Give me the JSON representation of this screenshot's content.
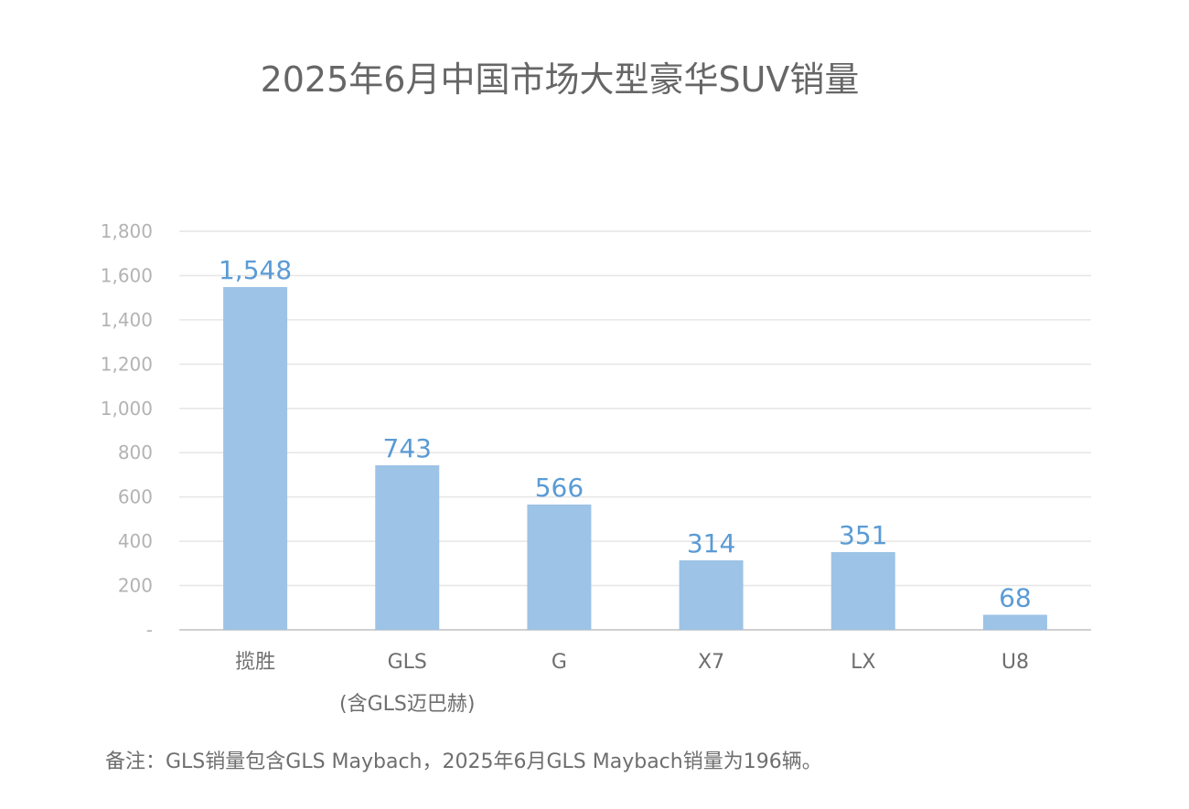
{
  "chart_data": {
    "type": "bar",
    "title": "2025年6月中国市场大型豪华SUV销量",
    "categories": [
      {
        "label": "揽胜",
        "sublabel": ""
      },
      {
        "label": "GLS",
        "sublabel": "(含GLS迈巴赫)"
      },
      {
        "label": "G",
        "sublabel": ""
      },
      {
        "label": "X7",
        "sublabel": ""
      },
      {
        "label": "LX",
        "sublabel": ""
      },
      {
        "label": "U8",
        "sublabel": ""
      }
    ],
    "values": [
      1548,
      743,
      566,
      314,
      351,
      68
    ],
    "data_labels": [
      "1,548",
      "743",
      "566",
      "314",
      "351",
      "68"
    ],
    "ylim": [
      0,
      1800
    ],
    "y_ticks": [
      {
        "value": 0,
        "label": "-"
      },
      {
        "value": 200,
        "label": "200"
      },
      {
        "value": 400,
        "label": "400"
      },
      {
        "value": 600,
        "label": "600"
      },
      {
        "value": 800,
        "label": "800"
      },
      {
        "value": 1000,
        "label": "1,000"
      },
      {
        "value": 1200,
        "label": "1,200"
      },
      {
        "value": 1400,
        "label": "1,400"
      },
      {
        "value": 1600,
        "label": "1,600"
      },
      {
        "value": 1800,
        "label": "1,800"
      }
    ],
    "grid": true,
    "legend": "none",
    "colors": {
      "bar": "#9dc3e6",
      "data_label": "#5a9bd5",
      "grid": "#e6e6e6",
      "axis": "#d0d0d0"
    }
  },
  "footnote": "备注：GLS销量包含GLS Maybach，2025年6月GLS Maybach销量为196辆。"
}
